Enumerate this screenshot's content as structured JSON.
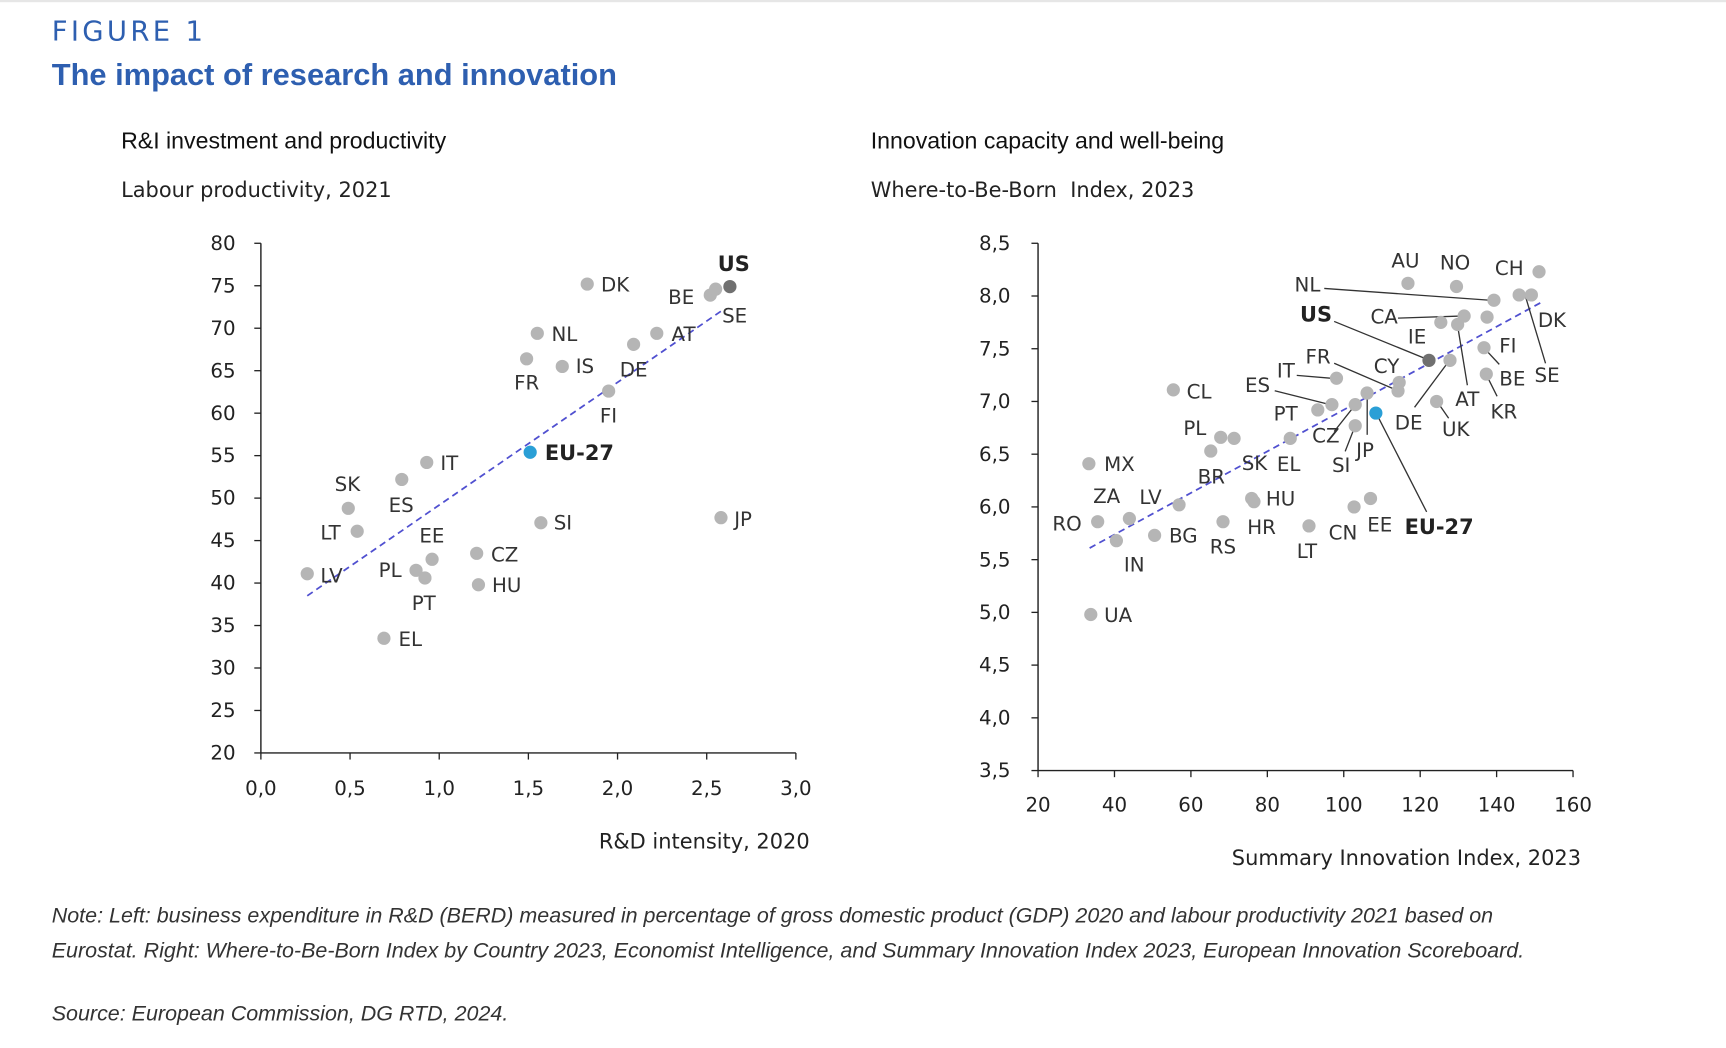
{
  "header": {
    "figure_label": "FIGURE 1",
    "title": "The impact of research and innovation"
  },
  "colors": {
    "point": "#b5b5b5",
    "us": "#707070",
    "eu": "#2a9fd6",
    "trend": "#5050d0",
    "accent": "#2e5fb0"
  },
  "chart_data": [
    {
      "type": "scatter",
      "title": "R&I investment and productivity",
      "ylabel": "Labour productivity, 2021",
      "xlabel": "R&D intensity, 2020",
      "xlim": [
        0,
        3
      ],
      "ylim": [
        20,
        80
      ],
      "xticks": [
        "0,0",
        "0,5",
        "1,0",
        "1,5",
        "2,0",
        "2,5",
        "3,0"
      ],
      "yticks": [
        "20",
        "25",
        "30",
        "35",
        "40",
        "45",
        "50",
        "55",
        "60",
        "65",
        "70",
        "75",
        "80"
      ],
      "grid": false,
      "trendline": {
        "x": [
          0.26,
          2.58
        ],
        "y": [
          38.5,
          72.0
        ]
      },
      "points": [
        {
          "label": "DK",
          "x": 1.83,
          "y": 75.2
        },
        {
          "label": "US",
          "x": 2.63,
          "y": 74.9
        },
        {
          "label": "BE",
          "x": 2.52,
          "y": 73.9
        },
        {
          "label": "SE",
          "x": 2.55,
          "y": 74.6
        },
        {
          "label": "NL",
          "x": 1.55,
          "y": 69.4
        },
        {
          "label": "AT",
          "x": 2.22,
          "y": 69.4
        },
        {
          "label": "DE",
          "x": 2.09,
          "y": 68.1
        },
        {
          "label": "FR",
          "x": 1.49,
          "y": 66.4
        },
        {
          "label": "IS",
          "x": 1.69,
          "y": 65.5
        },
        {
          "label": "FI",
          "x": 1.95,
          "y": 62.6
        },
        {
          "label": "EU-27",
          "x": 1.51,
          "y": 55.4
        },
        {
          "label": "IT",
          "x": 0.93,
          "y": 54.2
        },
        {
          "label": "ES",
          "x": 0.79,
          "y": 52.2
        },
        {
          "label": "SK",
          "x": 0.49,
          "y": 48.8
        },
        {
          "label": "LT",
          "x": 0.54,
          "y": 46.1
        },
        {
          "label": "SI",
          "x": 1.57,
          "y": 47.1
        },
        {
          "label": "JP",
          "x": 2.58,
          "y": 47.7
        },
        {
          "label": "EE",
          "x": 0.96,
          "y": 42.8
        },
        {
          "label": "CZ",
          "x": 1.21,
          "y": 43.5
        },
        {
          "label": "PL",
          "x": 0.87,
          "y": 41.5
        },
        {
          "label": "PT",
          "x": 0.92,
          "y": 40.6
        },
        {
          "label": "HU",
          "x": 1.22,
          "y": 39.8
        },
        {
          "label": "LV",
          "x": 0.26,
          "y": 41.1
        },
        {
          "label": "EL",
          "x": 0.69,
          "y": 33.5
        }
      ]
    },
    {
      "type": "scatter",
      "title": "Innovation capacity and well-being",
      "ylabel": "Where-to-Be-Born  Index, 2023",
      "xlabel": "Summary Innovation Index, 2023",
      "xlim": [
        20,
        160
      ],
      "ylim": [
        3.5,
        8.5
      ],
      "xticks": [
        "20",
        "40",
        "60",
        "80",
        "100",
        "120",
        "140",
        "160"
      ],
      "yticks": [
        "3,5",
        "4,0",
        "4,5",
        "5,0",
        "5,5",
        "6,0",
        "6,5",
        "7,0",
        "7,5",
        "8,0",
        "8,5"
      ],
      "grid": false,
      "trendline": {
        "x": [
          33.5,
          151.7
        ],
        "y": [
          5.61,
          7.94
        ]
      },
      "points": [
        {
          "label": "AU",
          "x": 116.8,
          "y": 8.12
        },
        {
          "label": "NO",
          "x": 129.5,
          "y": 8.09
        },
        {
          "label": "CH",
          "x": 151.1,
          "y": 8.23
        },
        {
          "label": "NL",
          "x": 139.3,
          "y": 7.96
        },
        {
          "label": "DK",
          "x": 149.1,
          "y": 8.01
        },
        {
          "label": "SE",
          "x": 145.9,
          "y": 8.01
        },
        {
          "label": "CA",
          "x": 131.5,
          "y": 7.81
        },
        {
          "label": "IE",
          "x": 125.4,
          "y": 7.75
        },
        {
          "label": "AT",
          "x": 129.8,
          "y": 7.73
        },
        {
          "label": "FI",
          "x": 137.5,
          "y": 7.8
        },
        {
          "label": "US",
          "x": 122.3,
          "y": 7.39
        },
        {
          "label": "DE",
          "x": 127.8,
          "y": 7.39
        },
        {
          "label": "BE",
          "x": 136.7,
          "y": 7.51
        },
        {
          "label": "KR",
          "x": 137.3,
          "y": 7.26
        },
        {
          "label": "FR",
          "x": 114.5,
          "y": 7.18
        },
        {
          "label": "CY",
          "x": 114.2,
          "y": 7.1
        },
        {
          "label": "JP",
          "x": 106.1,
          "y": 7.08
        },
        {
          "label": "IT",
          "x": 98.1,
          "y": 7.22
        },
        {
          "label": "ES",
          "x": 96.9,
          "y": 6.97
        },
        {
          "label": "PT",
          "x": 93.2,
          "y": 6.92
        },
        {
          "label": "CZ",
          "x": 103.0,
          "y": 6.97
        },
        {
          "label": "SI",
          "x": 103.0,
          "y": 6.77
        },
        {
          "label": "EU-27",
          "x": 108.4,
          "y": 6.89
        },
        {
          "label": "UK",
          "x": 124.3,
          "y": 7.0
        },
        {
          "label": "CL",
          "x": 55.4,
          "y": 7.11
        },
        {
          "label": "BR",
          "x": 65.2,
          "y": 6.53
        },
        {
          "label": "PL",
          "x": 67.8,
          "y": 6.66
        },
        {
          "label": "SK",
          "x": 71.3,
          "y": 6.65
        },
        {
          "label": "EL",
          "x": 86.0,
          "y": 6.65
        },
        {
          "label": "MX",
          "x": 33.3,
          "y": 6.41
        },
        {
          "label": "RO",
          "x": 35.6,
          "y": 5.86
        },
        {
          "label": "ZA",
          "x": 43.9,
          "y": 5.89
        },
        {
          "label": "IN",
          "x": 40.5,
          "y": 5.68
        },
        {
          "label": "BG",
          "x": 50.5,
          "y": 5.73
        },
        {
          "label": "LV",
          "x": 56.9,
          "y": 6.02
        },
        {
          "label": "HU",
          "x": 75.9,
          "y": 6.08
        },
        {
          "label": "HR",
          "x": 76.5,
          "y": 6.05
        },
        {
          "label": "RS",
          "x": 68.4,
          "y": 5.86
        },
        {
          "label": "LT",
          "x": 90.9,
          "y": 5.82
        },
        {
          "label": "CN",
          "x": 102.7,
          "y": 6.0
        },
        {
          "label": "EE",
          "x": 107.0,
          "y": 6.08
        },
        {
          "label": "UA",
          "x": 33.8,
          "y": 4.98
        }
      ]
    }
  ],
  "notes": {
    "line1": "Note: Left: business expenditure in R&D (BERD) measured in percentage of gross domestic product (GDP) 2020 and labour productivity 2021 based on",
    "line2": "Eurostat. Right: Where-to-Be-Born Index by Country 2023, Economist Intelligence, and Summary Innovation Index 2023, European Innovation Scoreboard.",
    "source": "Source: European Commission, DG RTD, 2024."
  }
}
